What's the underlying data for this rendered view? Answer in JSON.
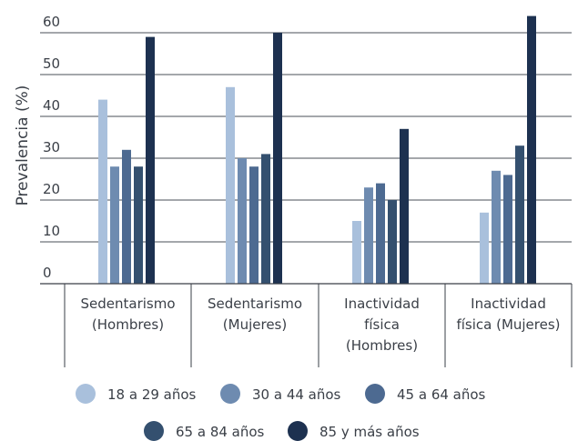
{
  "chart_data": {
    "type": "bar",
    "ylabel": "Prevalencia (%)",
    "ylim": [
      0,
      65
    ],
    "yticks": [
      0,
      10,
      20,
      30,
      40,
      50,
      60
    ],
    "grid": true,
    "legend_position": "bottom",
    "categories": [
      [
        "Sedentarismo",
        "(Hombres)"
      ],
      [
        "Sedentarismo",
        "(Mujeres)"
      ],
      [
        "Inactividad",
        "física",
        "(Hombres)"
      ],
      [
        "Inactividad",
        "física (Mujeres)"
      ]
    ],
    "series": [
      {
        "name": "18 a 29 años",
        "color": "#a9c0dc",
        "values": [
          44,
          47,
          15,
          17
        ]
      },
      {
        "name": "30 a 44 años",
        "color": "#6e8bb0",
        "values": [
          28,
          30,
          23,
          27
        ]
      },
      {
        "name": "45 a 64 años",
        "color": "#4d6a91",
        "values": [
          32,
          28,
          24,
          26
        ]
      },
      {
        "name": "65 a 84 años",
        "color": "#34506f",
        "values": [
          28,
          31,
          20,
          33
        ]
      },
      {
        "name": "85 y más años",
        "color": "#1d3150",
        "values": [
          59,
          60,
          37,
          64
        ]
      }
    ]
  }
}
